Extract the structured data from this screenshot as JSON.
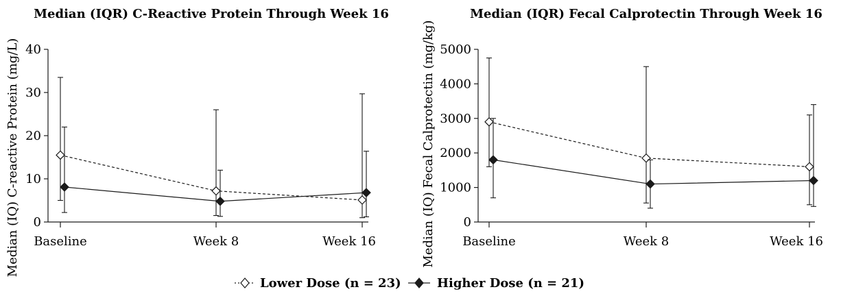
{
  "chart_data": [
    {
      "type": "line",
      "title": "Median (IQR) C-Reactive Protein Through Week 16",
      "xlabel": "",
      "ylabel": "Median (IQ) C-reactive Protein (mg/L)",
      "categories": [
        "Baseline",
        "Week 8",
        "Week 16"
      ],
      "ylim": [
        0,
        40
      ],
      "yticks": [
        "0",
        "10",
        "20",
        "30",
        "40"
      ],
      "ytick_values": [
        0,
        10,
        20,
        30,
        40
      ],
      "series": [
        {
          "name": "Lower Dose (n = 23)",
          "style": "dashed",
          "marker": "open-diamond",
          "values": [
            15.5,
            7.2,
            5.1
          ],
          "lower": [
            5.0,
            1.5,
            1.0
          ],
          "upper": [
            33.5,
            26.0,
            29.7
          ]
        },
        {
          "name": "Higher Dose (n = 21)",
          "style": "solid",
          "marker": "filled-diamond",
          "values": [
            8.1,
            4.8,
            6.8
          ],
          "lower": [
            2.2,
            1.3,
            1.2
          ],
          "upper": [
            22.0,
            12.0,
            16.4
          ]
        }
      ]
    },
    {
      "type": "line",
      "title": "Median (IQR) Fecal Calprotectin Through Week 16",
      "xlabel": "",
      "ylabel": "Median (IQ) Fecal Calprotectin (mg/kg)",
      "categories": [
        "Baseline",
        "Week 8",
        "Week 16"
      ],
      "ylim": [
        0,
        5000
      ],
      "yticks": [
        "0",
        "1000",
        "2000",
        "3000",
        "4000",
        "5000"
      ],
      "ytick_values": [
        0,
        1000,
        2000,
        3000,
        4000,
        5000
      ],
      "series": [
        {
          "name": "Lower Dose (n = 23)",
          "style": "dashed",
          "marker": "open-diamond",
          "values": [
            2900,
            1850,
            1600
          ],
          "lower": [
            1600,
            550,
            500
          ],
          "upper": [
            4750,
            4500,
            3100
          ]
        },
        {
          "name": "Higher Dose (n = 21)",
          "style": "solid",
          "marker": "filled-diamond",
          "values": [
            1800,
            1100,
            1200
          ],
          "lower": [
            700,
            400,
            450
          ],
          "upper": [
            3000,
            1800,
            3400
          ]
        }
      ]
    }
  ],
  "legend": {
    "placement": "bottom-center",
    "items": [
      {
        "label": "Lower Dose (n = 23)",
        "marker": "open-diamond",
        "style": "dashed"
      },
      {
        "label": "Higher Dose (n = 21)",
        "marker": "filled-diamond",
        "style": "solid"
      }
    ]
  },
  "colors": {
    "line": "#1a1a1a",
    "open_marker_fill": "#ffffff"
  }
}
